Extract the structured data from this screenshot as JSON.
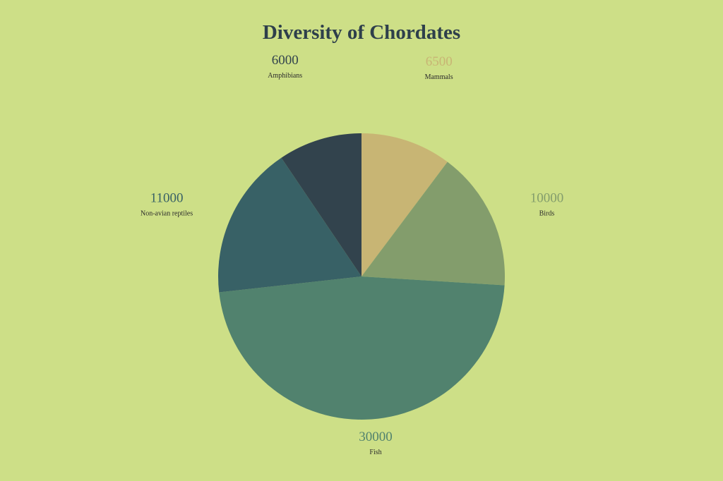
{
  "chart_data": {
    "type": "pie",
    "title": "Diversity of Chordates",
    "start_angle_deg": 0,
    "direction": "clockwise",
    "slices": [
      {
        "label": "Mammals",
        "value": 6500,
        "color": "#c8b574"
      },
      {
        "label": "Birds",
        "value": 10000,
        "color": "#839d6c"
      },
      {
        "label": "Fish",
        "value": 30000,
        "color": "#51826e"
      },
      {
        "label": "Non-avian reptiles",
        "value": 11000,
        "color": "#386166"
      },
      {
        "label": "Amphibians",
        "value": 6000,
        "color": "#32434d"
      }
    ]
  },
  "colors": {
    "background": "#cddf87",
    "title": "#2e3f4b"
  }
}
